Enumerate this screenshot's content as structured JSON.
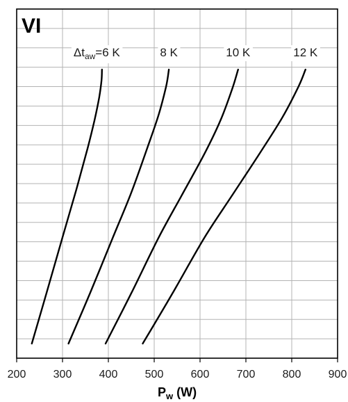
{
  "chart_data": {
    "type": "line",
    "panel_label": "VI",
    "xlabel": {
      "main": "P",
      "sub": "w",
      "unit": " (W)"
    },
    "ylabel": "",
    "xlim": [
      200,
      900
    ],
    "x_ticks": [
      200,
      300,
      400,
      500,
      600,
      700,
      800,
      900
    ],
    "x_tick_labels": [
      "200",
      "300",
      "400",
      "500",
      "600",
      "700",
      "800",
      "900"
    ],
    "y_gridlines": 17,
    "grid": true,
    "legend": "none",
    "label_prefix": {
      "main": "Δt",
      "sub": "aw",
      "eq": "="
    },
    "series": [
      {
        "name": "6 K",
        "label": "6 K",
        "x": [
          233,
          265,
          300,
          330,
          355,
          370,
          380,
          385,
          386
        ],
        "y": [
          0.02,
          0.2,
          0.4,
          0.57,
          0.72,
          0.82,
          0.9,
          0.96,
          1.0
        ]
      },
      {
        "name": "8 K",
        "label": "8 K",
        "x": [
          313,
          360,
          410,
          450,
          485,
          510,
          526,
          532
        ],
        "y": [
          0.02,
          0.2,
          0.4,
          0.56,
          0.72,
          0.84,
          0.94,
          1.0
        ]
      },
      {
        "name": "10 K",
        "label": "10 K",
        "x": [
          394,
          450,
          510,
          560,
          610,
          645,
          670,
          683
        ],
        "y": [
          0.02,
          0.2,
          0.4,
          0.55,
          0.7,
          0.82,
          0.93,
          1.0
        ]
      },
      {
        "name": "12 K",
        "label": "12 K",
        "x": [
          475,
          540,
          610,
          670,
          730,
          780,
          815,
          830
        ],
        "y": [
          0.02,
          0.2,
          0.4,
          0.55,
          0.7,
          0.83,
          0.94,
          1.0
        ]
      }
    ]
  }
}
